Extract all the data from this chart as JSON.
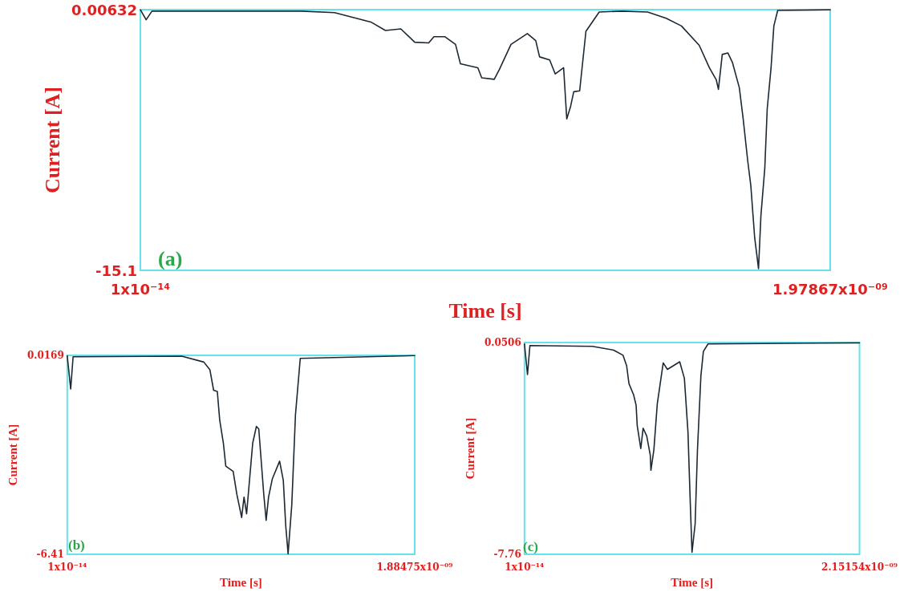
{
  "chart_data": [
    {
      "type": "line",
      "xlabel": "Time [s]",
      "ylabel": "Current [A]",
      "annotations": [
        "(a)"
      ],
      "grid": false,
      "marker": "none",
      "line_style": "solid",
      "xlim": [
        1e-14,
        1.97867e-09
      ],
      "xticks": [
        {
          "value": 1e-14,
          "label": "1x10⁻¹⁴"
        },
        {
          "value": 1.97867e-09,
          "label": "1.97867x10⁻⁰⁹"
        }
      ],
      "ylim": [
        -15.1,
        0.00632
      ],
      "yticks": [
        -15.1,
        0.00632
      ],
      "series": [
        {
          "color": "#1c2833",
          "x": [
            1e-14,
            1.66e-11,
            3.32e-11,
            4.62e-10,
            5.57e-10,
            6.61e-10,
            7.03e-10,
            7.47e-10,
            7.87e-10,
            8.27e-10,
            8.42e-10,
            8.73e-10,
            9.04e-10,
            9.18e-10,
            9.68e-10,
            9.79e-10,
            1.015e-09,
            1.03e-09,
            1.063e-09,
            1.11e-09,
            1.134e-09,
            1.145e-09,
            1.174e-09,
            1.19e-09,
            1.214e-09,
            1.223e-09,
            1.234e-09,
            1.243e-09,
            1.26e-09,
            1.278e-09,
            1.316e-09,
            1.382e-09,
            1.455e-09,
            1.508e-09,
            1.552e-09,
            1.603e-09,
            1.632e-09,
            1.652e-09,
            1.658e-09,
            1.669e-09,
            1.685e-09,
            1.698e-09,
            1.718e-09,
            1.729e-09,
            1.742e-09,
            1.751e-09,
            1.762e-09,
            1.773e-09,
            1.78e-09,
            1.791e-09,
            1.798e-09,
            1.809e-09,
            1.817e-09,
            1.828e-09,
            1.97867e-09
          ],
          "values": [
            0,
            -0.58,
            -0.08,
            -0.08,
            -0.17,
            -0.71,
            -1.2,
            -1.11,
            -1.88,
            -1.92,
            -1.56,
            -1.56,
            -2.01,
            -3.13,
            -3.36,
            -3.94,
            -4.03,
            -3.45,
            -2.01,
            -1.38,
            -1.79,
            -2.73,
            -2.91,
            -3.72,
            -3.36,
            -6.32,
            -5.6,
            -4.75,
            -4.7,
            -1.25,
            -0.13,
            -0.08,
            -0.13,
            -0.49,
            -0.94,
            -2.06,
            -3.36,
            -4.07,
            -4.61,
            -2.59,
            -2.5,
            -3.04,
            -4.52,
            -6.32,
            -8.74,
            -10.2,
            -13.2,
            -15.0,
            -11.9,
            -9.19,
            -5.73,
            -3.36,
            -0.94,
            -0.04,
            0
          ]
        }
      ]
    },
    {
      "type": "line",
      "xlabel": "Time [s]",
      "ylabel": "Current [A]",
      "annotations": [
        "(b)"
      ],
      "grid": false,
      "marker": "none",
      "line_style": "solid",
      "xlim": [
        1e-14,
        1.88475e-09
      ],
      "xticks": [
        {
          "value": 1e-14,
          "label": "1x10⁻¹⁴"
        },
        {
          "value": 1.88475e-09,
          "label": "1.88475x10⁻⁰⁹"
        }
      ],
      "ylim": [
        -6.41,
        0.0169
      ],
      "yticks": [
        -6.41,
        0.0169
      ],
      "series": [
        {
          "color": "#1c2833",
          "x": [
            1e-14,
            1.87e-11,
            3.18e-11,
            6.21e-10,
            7.41e-10,
            7.74e-10,
            7.94e-10,
            8.14e-10,
            8.27e-10,
            8.47e-10,
            8.6e-10,
            9e-10,
            9.2e-10,
            9.46e-10,
            9.59e-10,
            9.73e-10,
            1.006e-09,
            1.026e-09,
            1.039e-09,
            1.066e-09,
            1.079e-09,
            1.092e-09,
            1.112e-09,
            1.152e-09,
            1.172e-09,
            1.185e-09,
            1.198e-09,
            1.218e-09,
            1.238e-09,
            1.264e-09,
            1.88475e-09
          ],
          "values": [
            0,
            -1.07,
            -0.03,
            -0.01,
            -0.2,
            -0.45,
            -1.11,
            -1.15,
            -2.07,
            -2.82,
            -3.56,
            -3.73,
            -4.47,
            -5.22,
            -4.56,
            -5.1,
            -2.82,
            -2.28,
            -2.36,
            -4.47,
            -5.31,
            -4.56,
            -3.98,
            -3.4,
            -4.02,
            -5.47,
            -6.39,
            -4.81,
            -1.9,
            -0.08,
            0.01
          ]
        }
      ]
    },
    {
      "type": "line",
      "xlabel": "Time [s]",
      "ylabel": "Current [A]",
      "annotations": [
        "(c)"
      ],
      "grid": false,
      "marker": "none",
      "line_style": "solid",
      "xlim": [
        1e-14,
        2.15154e-09
      ],
      "xticks": [
        {
          "value": 1e-14,
          "label": "1x10⁻¹⁴"
        },
        {
          "value": 2.15154e-09,
          "label": "2.15154x10⁻⁰⁹"
        }
      ],
      "ylim": [
        -7.76,
        0.0506
      ],
      "yticks": [
        -7.76,
        0.0506
      ],
      "series": [
        {
          "color": "#1c2833",
          "x": [
            1e-14,
            1.95e-11,
            3.5e-11,
            4.36e-10,
            5.73e-10,
            6.33e-10,
            6.56e-10,
            6.71e-10,
            7.01e-10,
            7.17e-10,
            7.24e-10,
            7.47e-10,
            7.62e-10,
            7.85e-10,
            8.08e-10,
            8.12e-10,
            8.31e-10,
            8.53e-10,
            8.91e-10,
            9.18e-10,
            9.97e-10,
            1.027e-09,
            1.05e-09,
            1.065e-09,
            1.076e-09,
            1.096e-09,
            1.111e-09,
            1.133e-09,
            1.149e-09,
            1.179e-09,
            2.15154e-09
          ],
          "values": [
            0,
            -1.13,
            -0.06,
            -0.09,
            -0.23,
            -0.42,
            -0.8,
            -1.46,
            -1.88,
            -2.26,
            -3.01,
            -3.86,
            -3.11,
            -3.39,
            -4.1,
            -4.66,
            -3.91,
            -2.21,
            -0.7,
            -0.94,
            -0.66,
            -1.27,
            -3.25,
            -5.89,
            -7.68,
            -6.64,
            -3.91,
            -1.18,
            -0.28,
            0.0,
            0.04
          ]
        }
      ]
    }
  ]
}
